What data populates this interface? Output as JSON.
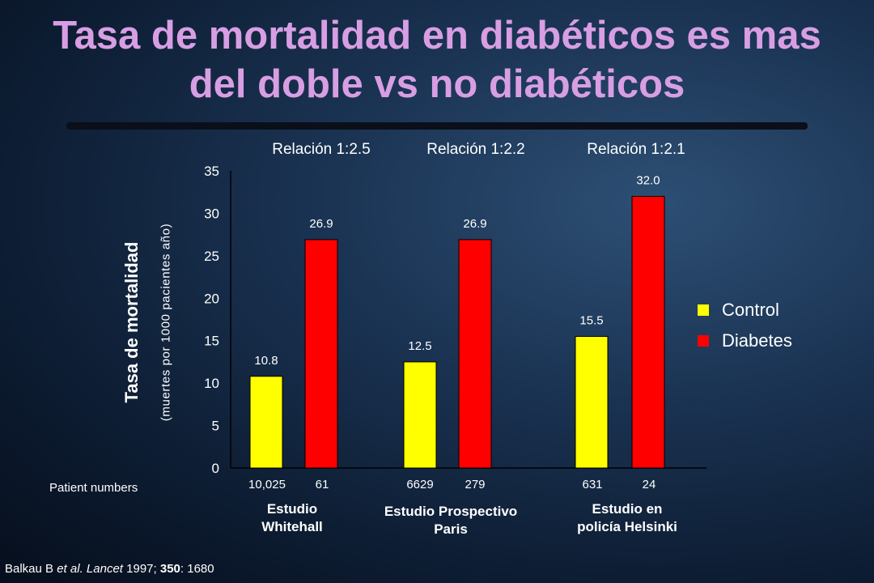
{
  "title": {
    "line1": "Tasa de mortalidad en diabéticos es mas",
    "line2": "del doble vs no diabéticos"
  },
  "ratios": [
    "Relación 1:2.5",
    "Relación 1:2.2",
    "Relación 1:2.1"
  ],
  "y_axis": {
    "label": "Tasa de mortalidad",
    "sublabel": "(muertes por 1000 pacientes año)"
  },
  "patient_numbers_label": "Patient numbers",
  "patient_numbers": [
    [
      "10,025",
      "61"
    ],
    [
      "6629",
      "279"
    ],
    [
      "631",
      "24"
    ]
  ],
  "studies": [
    {
      "line1": "Estudio",
      "line2": "Whitehall"
    },
    {
      "line1": "Estudio Prospectivo",
      "line2": "Paris"
    },
    {
      "line1": "Estudio en",
      "line2": "policía Helsinki"
    }
  ],
  "legend": [
    {
      "label": "Control",
      "color": "#ffff00"
    },
    {
      "label": "Diabetes",
      "color": "#ff0000"
    }
  ],
  "citation": {
    "authors": "Balkau B",
    "etal": "et al.",
    "journal": "Lancet",
    "year": "1997;",
    "volume": "350",
    "pages": ": 1680"
  },
  "chart_data": {
    "type": "bar",
    "categories": [
      "Estudio Whitehall",
      "Estudio Prospectivo Paris",
      "Estudio en policía Helsinki"
    ],
    "series": [
      {
        "name": "Control",
        "color": "#ffff00",
        "values": [
          10.8,
          12.5,
          15.5
        ],
        "labels": [
          "10.8",
          "12.5",
          "15.5"
        ]
      },
      {
        "name": "Diabetes",
        "color": "#ff0000",
        "values": [
          26.9,
          26.9,
          32.0
        ],
        "labels": [
          "26.9",
          "26.9",
          "32.0"
        ]
      }
    ],
    "ylim": [
      0,
      35
    ],
    "yticks": [
      0,
      5,
      10,
      15,
      20,
      25,
      30,
      35
    ],
    "grid": false,
    "legend_position": "right"
  }
}
